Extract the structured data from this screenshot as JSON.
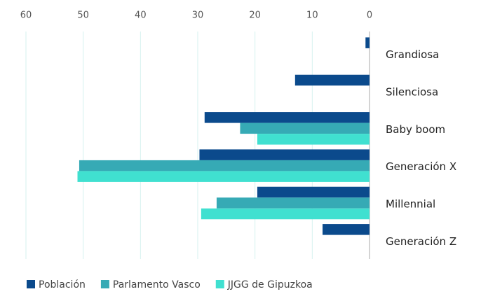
{
  "chart_data": {
    "type": "bar",
    "orientation": "horizontal",
    "x_reversed": true,
    "categories": [
      "Grandiosa",
      "Silenciosa",
      "Baby boom",
      "Generación X",
      "Millennial",
      "Generación Z"
    ],
    "series": [
      {
        "name": "Población",
        "color": "#0b4a8c",
        "values": [
          0.7,
          13.0,
          28.8,
          29.7,
          19.6,
          8.2
        ]
      },
      {
        "name": "Parlamento Vasco",
        "color": "#36aab5",
        "values": [
          null,
          null,
          22.6,
          50.7,
          26.7,
          null
        ]
      },
      {
        "name": "JJGG de Gipuzkoa",
        "color": "#40e0d0",
        "values": [
          null,
          null,
          19.6,
          51.0,
          29.4,
          null
        ]
      }
    ],
    "xlim": [
      0,
      60
    ],
    "xticks": [
      60,
      50,
      40,
      30,
      20,
      10,
      0
    ],
    "grid": true,
    "legend": "bottom"
  }
}
